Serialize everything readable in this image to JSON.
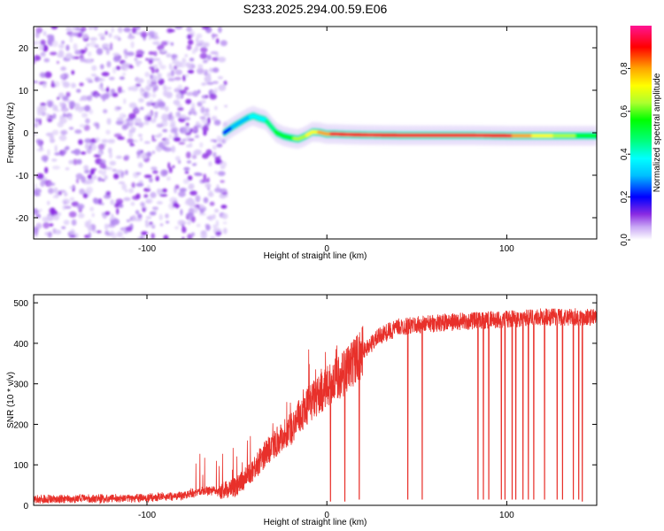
{
  "title": "S233.2025.294.00.59.E06",
  "chart_data": [
    {
      "type": "heatmap",
      "name": "spectrogram",
      "xlabel": "Height of straight line (km)",
      "ylabel": "Frequency (Hz)",
      "xlim": [
        -163,
        150
      ],
      "ylim": [
        -25,
        25
      ],
      "xticks": [
        -100,
        0,
        100
      ],
      "yticks": [
        -20,
        -10,
        0,
        10,
        20
      ],
      "colorbar": {
        "label": "Normalized spectral amplitude",
        "range": [
          0,
          1
        ],
        "ticks": [
          "0.0",
          "0.2",
          "0.4",
          "0.6",
          "0.8"
        ],
        "colors": [
          "#ffffff",
          "#c9a8f5",
          "#8a2be2",
          "#0000ff",
          "#00bfff",
          "#00ffff",
          "#00ff7f",
          "#00ff00",
          "#adff2f",
          "#ffff00",
          "#ffa500",
          "#ff0000",
          "#ff1493"
        ]
      },
      "noise_region": [
        -163,
        -60
      ],
      "line": {
        "x": [
          -57,
          -52,
          -48,
          -44,
          -41,
          -38,
          -34,
          -31,
          -28,
          -24,
          -20,
          -16,
          -12,
          -8,
          -4,
          0,
          5,
          10,
          20,
          40,
          60,
          80,
          100,
          120,
          150
        ],
        "freq": [
          0,
          1.5,
          2.5,
          3.5,
          4,
          3.5,
          3,
          1.5,
          0,
          -0.8,
          -1.2,
          -1.5,
          -0.8,
          0.2,
          0.1,
          -0.3,
          -0.3,
          -0.4,
          -0.5,
          -0.6,
          -0.6,
          -0.6,
          -0.7,
          -0.7,
          -0.7
        ],
        "amplitude": [
          0.25,
          0.3,
          0.35,
          0.35,
          0.4,
          0.4,
          0.45,
          0.5,
          0.55,
          0.55,
          0.6,
          0.65,
          0.7,
          0.75,
          0.8,
          0.85,
          0.9,
          0.92,
          0.95,
          0.95,
          0.95,
          0.95,
          0.9,
          0.75,
          0.55
        ]
      }
    },
    {
      "type": "line",
      "name": "snr",
      "xlabel": "Height of straight line (km)",
      "ylabel": "SNR (10 * v/v)",
      "xlim": [
        -163,
        150
      ],
      "ylim": [
        0,
        520
      ],
      "xticks": [
        -100,
        0,
        100
      ],
      "yticks": [
        0,
        100,
        200,
        300,
        400,
        500
      ],
      "color": "#e8302a",
      "trend": {
        "x": [
          -163,
          -100,
          -80,
          -70,
          -60,
          -50,
          -40,
          -30,
          -20,
          -10,
          0,
          10,
          20,
          30,
          40,
          60,
          80,
          100,
          120,
          150
        ],
        "y": [
          15,
          18,
          25,
          35,
          35,
          45,
          95,
          150,
          190,
          250,
          290,
          330,
          380,
          420,
          440,
          450,
          455,
          460,
          465,
          465
        ]
      },
      "dropouts_x": [
        2,
        10,
        18,
        45,
        53,
        84,
        87,
        90,
        97,
        99,
        103,
        105,
        109,
        112,
        115,
        121,
        128,
        131,
        137,
        140,
        142
      ],
      "dropouts_y": [
        10,
        10,
        15,
        15,
        15,
        15,
        15,
        15,
        15,
        15,
        15,
        15,
        15,
        15,
        15,
        15,
        15,
        15,
        15,
        15,
        10
      ]
    }
  ]
}
